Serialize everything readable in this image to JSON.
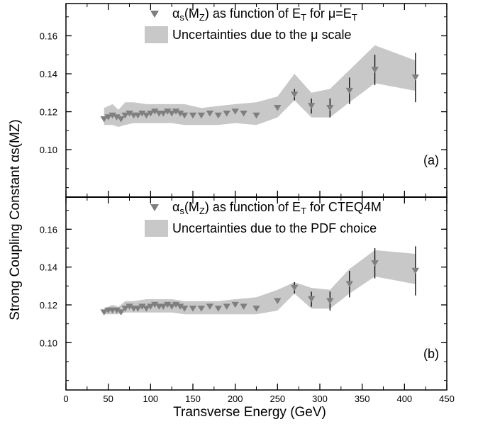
{
  "chart_data": {
    "type": "scatter",
    "ylabel": "Strong Coupling Constant αs(MZ)",
    "xlabel": "Transverse Energy (GeV)",
    "xlim": [
      0,
      450
    ],
    "x_ticks": [
      "0",
      "50",
      "100",
      "150",
      "200",
      "250",
      "300",
      "350",
      "400",
      "450"
    ],
    "grid": false,
    "colors": {
      "marker": "#7f7f7f",
      "band": "#c8c8c8",
      "axis": "#000000"
    },
    "panels": [
      {
        "id": "a",
        "panel_label": "(a)",
        "ylim": [
          0.075,
          0.177
        ],
        "y_ticks": [
          "0.10",
          "0.12",
          "0.14",
          "0.16"
        ],
        "legend": [
          {
            "kind": "marker",
            "text": "αs(MZ) as function of ET for μ=ET"
          },
          {
            "kind": "band",
            "text": "Uncertainties due to the μ scale"
          }
        ],
        "band": {
          "x": [
            45,
            55,
            62,
            70,
            80,
            95,
            110,
            125,
            140,
            160,
            180,
            200,
            225,
            250,
            270,
            290,
            312,
            335,
            365,
            413
          ],
          "lower": [
            0.113,
            0.113,
            0.112,
            0.113,
            0.114,
            0.114,
            0.114,
            0.114,
            0.113,
            0.113,
            0.113,
            0.114,
            0.113,
            0.117,
            0.126,
            0.117,
            0.117,
            0.125,
            0.135,
            0.131
          ],
          "upper": [
            0.122,
            0.124,
            0.121,
            0.125,
            0.125,
            0.124,
            0.124,
            0.124,
            0.124,
            0.122,
            0.123,
            0.124,
            0.125,
            0.128,
            0.14,
            0.13,
            0.132,
            0.142,
            0.155,
            0.147
          ]
        },
        "points": {
          "x": [
            45,
            50,
            55,
            60,
            65,
            70,
            75,
            80,
            85,
            90,
            95,
            100,
            105,
            110,
            115,
            120,
            125,
            130,
            135,
            140,
            150,
            160,
            170,
            180,
            190,
            200,
            210,
            225,
            250,
            270,
            290,
            312,
            335,
            365,
            413
          ],
          "y": [
            0.116,
            0.117,
            0.118,
            0.117,
            0.116,
            0.118,
            0.119,
            0.118,
            0.118,
            0.119,
            0.118,
            0.119,
            0.12,
            0.119,
            0.119,
            0.12,
            0.119,
            0.12,
            0.119,
            0.118,
            0.118,
            0.118,
            0.119,
            0.118,
            0.119,
            0.12,
            0.119,
            0.118,
            0.122,
            0.129,
            0.123,
            0.122,
            0.131,
            0.142,
            0.138
          ],
          "err": [
            0,
            0,
            0,
            0,
            0,
            0,
            0,
            0,
            0,
            0,
            0,
            0,
            0,
            0,
            0,
            0,
            0,
            0,
            0,
            0,
            0,
            0,
            0,
            0,
            0,
            0,
            0,
            0,
            0,
            0.003,
            0.004,
            0.005,
            0.007,
            0.008,
            0.013
          ]
        }
      },
      {
        "id": "b",
        "panel_label": "(b)",
        "ylim": [
          0.075,
          0.177
        ],
        "y_ticks": [
          "0.10",
          "0.12",
          "0.14",
          "0.16"
        ],
        "legend": [
          {
            "kind": "marker",
            "text": "αs(MZ) as function of ET for CTEQ4M"
          },
          {
            "kind": "band",
            "text": "Uncertainties due to the PDF choice"
          }
        ],
        "band": {
          "x": [
            45,
            55,
            62,
            70,
            80,
            95,
            110,
            125,
            140,
            160,
            180,
            200,
            225,
            250,
            270,
            290,
            312,
            335,
            365,
            413
          ],
          "lower": [
            0.115,
            0.115,
            0.115,
            0.116,
            0.116,
            0.116,
            0.116,
            0.116,
            0.115,
            0.115,
            0.115,
            0.115,
            0.115,
            0.117,
            0.126,
            0.118,
            0.118,
            0.126,
            0.135,
            0.131
          ],
          "upper": [
            0.118,
            0.12,
            0.119,
            0.122,
            0.122,
            0.123,
            0.123,
            0.123,
            0.122,
            0.122,
            0.122,
            0.123,
            0.124,
            0.128,
            0.132,
            0.129,
            0.128,
            0.139,
            0.149,
            0.147
          ]
        },
        "points": {
          "x": [
            45,
            50,
            55,
            60,
            65,
            70,
            75,
            80,
            85,
            90,
            95,
            100,
            105,
            110,
            115,
            120,
            125,
            130,
            135,
            140,
            150,
            160,
            170,
            180,
            190,
            200,
            210,
            225,
            250,
            270,
            290,
            312,
            335,
            365,
            413
          ],
          "y": [
            0.116,
            0.117,
            0.117,
            0.117,
            0.116,
            0.118,
            0.119,
            0.118,
            0.118,
            0.119,
            0.118,
            0.119,
            0.12,
            0.119,
            0.119,
            0.12,
            0.119,
            0.12,
            0.119,
            0.118,
            0.118,
            0.118,
            0.119,
            0.118,
            0.119,
            0.12,
            0.119,
            0.118,
            0.122,
            0.129,
            0.123,
            0.122,
            0.131,
            0.142,
            0.138
          ],
          "err": [
            0,
            0,
            0,
            0,
            0,
            0,
            0,
            0,
            0,
            0,
            0,
            0,
            0,
            0,
            0,
            0,
            0,
            0,
            0,
            0,
            0,
            0,
            0,
            0,
            0,
            0,
            0,
            0,
            0,
            0.003,
            0.004,
            0.005,
            0.007,
            0.008,
            0.013
          ]
        }
      }
    ]
  }
}
